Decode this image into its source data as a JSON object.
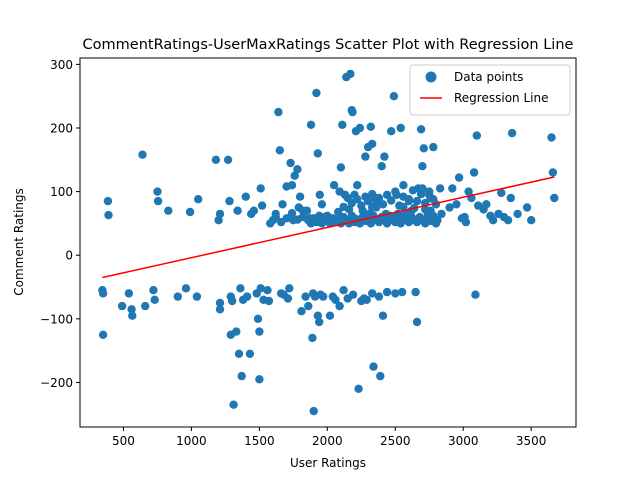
{
  "chart_data": {
    "type": "scatter",
    "title": "CommentRatings-UserMaxRatings Scatter Plot with Regression Line",
    "xlabel": "User Ratings",
    "ylabel": "Comment Ratings",
    "xlim": [
      180,
      3830
    ],
    "ylim": [
      -270,
      310
    ],
    "xticks": [
      500,
      1000,
      1500,
      2000,
      2500,
      3000,
      3500
    ],
    "xtick_labels": [
      "500",
      "1000",
      "1500",
      "2000",
      "2500",
      "3000",
      "3500"
    ],
    "yticks": [
      -200,
      -100,
      0,
      100,
      200,
      300
    ],
    "ytick_labels": [
      "−200",
      "−100",
      "0",
      "100",
      "200",
      "300"
    ],
    "grid": false,
    "legend_position": "top-right",
    "colors": {
      "points": "#1f77b4",
      "regression": "#ff0000",
      "frame": "#000000",
      "legend_border": "#cccccc"
    },
    "series": [
      {
        "name": "Data points",
        "kind": "scatter",
        "points": [
          [
            345,
            -55
          ],
          [
            350,
            -60
          ],
          [
            350,
            -125
          ],
          [
            385,
            85
          ],
          [
            390,
            63
          ],
          [
            490,
            -80
          ],
          [
            540,
            -60
          ],
          [
            560,
            -85
          ],
          [
            565,
            -95
          ],
          [
            640,
            158
          ],
          [
            660,
            -80
          ],
          [
            720,
            -55
          ],
          [
            730,
            -70
          ],
          [
            750,
            100
          ],
          [
            755,
            85
          ],
          [
            830,
            70
          ],
          [
            900,
            -65
          ],
          [
            960,
            -52
          ],
          [
            990,
            68
          ],
          [
            1040,
            -65
          ],
          [
            1050,
            88
          ],
          [
            1180,
            150
          ],
          [
            1200,
            55
          ],
          [
            1210,
            65
          ],
          [
            1210,
            -75
          ],
          [
            1210,
            -85
          ],
          [
            1270,
            150
          ],
          [
            1280,
            85
          ],
          [
            1290,
            -65
          ],
          [
            1290,
            -125
          ],
          [
            1300,
            -72
          ],
          [
            1310,
            -235
          ],
          [
            1330,
            -120
          ],
          [
            1340,
            70
          ],
          [
            1350,
            -155
          ],
          [
            1360,
            -52
          ],
          [
            1370,
            -190
          ],
          [
            1380,
            -70
          ],
          [
            1400,
            92
          ],
          [
            1410,
            -65
          ],
          [
            1430,
            -155
          ],
          [
            1440,
            65
          ],
          [
            1460,
            70
          ],
          [
            1480,
            -60
          ],
          [
            1490,
            -100
          ],
          [
            1500,
            -120
          ],
          [
            1500,
            -195
          ],
          [
            1510,
            -52
          ],
          [
            1510,
            105
          ],
          [
            1520,
            78
          ],
          [
            1530,
            -70
          ],
          [
            1560,
            -55
          ],
          [
            1570,
            -72
          ],
          [
            1580,
            50
          ],
          [
            1600,
            55
          ],
          [
            1620,
            65
          ],
          [
            1640,
            225
          ],
          [
            1650,
            165
          ],
          [
            1660,
            -60
          ],
          [
            1670,
            80
          ],
          [
            1680,
            -62
          ],
          [
            1700,
            108
          ],
          [
            1710,
            -68
          ],
          [
            1720,
            -52
          ],
          [
            1730,
            145
          ],
          [
            1740,
            110
          ],
          [
            1750,
            55
          ],
          [
            1760,
            125
          ],
          [
            1780,
            135
          ],
          [
            1790,
            75
          ],
          [
            1800,
            92
          ],
          [
            1810,
            -88
          ],
          [
            1820,
            60
          ],
          [
            1840,
            -65
          ],
          [
            1850,
            70
          ],
          [
            1860,
            -80
          ],
          [
            1870,
            58
          ],
          [
            1880,
            205
          ],
          [
            1890,
            -130
          ],
          [
            1895,
            -60
          ],
          [
            1900,
            -245
          ],
          [
            1910,
            -65
          ],
          [
            1920,
            255
          ],
          [
            1930,
            160
          ],
          [
            1930,
            -95
          ],
          [
            1940,
            -105
          ],
          [
            1945,
            95
          ],
          [
            1950,
            -62
          ],
          [
            1960,
            80
          ],
          [
            1970,
            -65
          ],
          [
            1980,
            60
          ],
          [
            2000,
            55
          ],
          [
            2020,
            -95
          ],
          [
            2040,
            -65
          ],
          [
            2060,
            -70
          ],
          [
            2080,
            68
          ],
          [
            2090,
            -80
          ],
          [
            2100,
            138
          ],
          [
            2110,
            205
          ],
          [
            2120,
            -55
          ],
          [
            2130,
            95
          ],
          [
            2140,
            280
          ],
          [
            2150,
            -68
          ],
          [
            2160,
            72
          ],
          [
            2170,
            285
          ],
          [
            2180,
            228
          ],
          [
            2185,
            225
          ],
          [
            2190,
            -62
          ],
          [
            2200,
            58
          ],
          [
            2210,
            195
          ],
          [
            2220,
            110
          ],
          [
            2230,
            -210
          ],
          [
            2240,
            200
          ],
          [
            2250,
            -72
          ],
          [
            2260,
            70
          ],
          [
            2270,
            -68
          ],
          [
            2280,
            155
          ],
          [
            2290,
            -70
          ],
          [
            2300,
            170
          ],
          [
            2310,
            65
          ],
          [
            2320,
            202
          ],
          [
            2330,
            -60
          ],
          [
            2330,
            175
          ],
          [
            2340,
            -175
          ],
          [
            2350,
            90
          ],
          [
            2360,
            75
          ],
          [
            2380,
            -65
          ],
          [
            2390,
            -190
          ],
          [
            2400,
            140
          ],
          [
            2410,
            -95
          ],
          [
            2420,
            155
          ],
          [
            2430,
            65
          ],
          [
            2440,
            -58
          ],
          [
            2470,
            195
          ],
          [
            2480,
            60
          ],
          [
            2490,
            250
          ],
          [
            2500,
            -60
          ],
          [
            2510,
            95
          ],
          [
            2520,
            65
          ],
          [
            2540,
            200
          ],
          [
            2550,
            -58
          ],
          [
            2560,
            110
          ],
          [
            2580,
            65
          ],
          [
            2600,
            85
          ],
          [
            2620,
            70
          ],
          [
            2650,
            -58
          ],
          [
            2660,
            -105
          ],
          [
            2670,
            105
          ],
          [
            2690,
            198
          ],
          [
            2700,
            140
          ],
          [
            2710,
            168
          ],
          [
            2720,
            72
          ],
          [
            2740,
            65
          ],
          [
            2750,
            95
          ],
          [
            2760,
            70
          ],
          [
            2780,
            170
          ],
          [
            2800,
            80
          ],
          [
            2810,
            55
          ],
          [
            2830,
            105
          ],
          [
            2840,
            65
          ],
          [
            2900,
            75
          ],
          [
            2920,
            105
          ],
          [
            2950,
            80
          ],
          [
            2970,
            122
          ],
          [
            2990,
            58
          ],
          [
            3010,
            60
          ],
          [
            3020,
            52
          ],
          [
            3040,
            100
          ],
          [
            3060,
            90
          ],
          [
            3080,
            130
          ],
          [
            3090,
            -62
          ],
          [
            3100,
            188
          ],
          [
            3110,
            78
          ],
          [
            3150,
            72
          ],
          [
            3170,
            80
          ],
          [
            3200,
            62
          ],
          [
            3220,
            55
          ],
          [
            3260,
            65
          ],
          [
            3280,
            98
          ],
          [
            3300,
            60
          ],
          [
            3330,
            55
          ],
          [
            3350,
            90
          ],
          [
            3360,
            192
          ],
          [
            3400,
            65
          ],
          [
            3470,
            75
          ],
          [
            3500,
            55
          ],
          [
            3650,
            185
          ],
          [
            3660,
            130
          ],
          [
            3670,
            90
          ]
        ],
        "cluster_points": [
          [
            1860,
            55
          ],
          [
            1880,
            50
          ],
          [
            1900,
            58
          ],
          [
            1920,
            52
          ],
          [
            1940,
            62
          ],
          [
            1960,
            50
          ],
          [
            1980,
            55
          ],
          [
            2000,
            62
          ],
          [
            2020,
            50
          ],
          [
            2040,
            58
          ],
          [
            2060,
            52
          ],
          [
            2080,
            56
          ],
          [
            2100,
            50
          ],
          [
            2120,
            60
          ],
          [
            2140,
            54
          ],
          [
            2160,
            50
          ],
          [
            2180,
            62
          ],
          [
            2200,
            52
          ],
          [
            2220,
            56
          ],
          [
            2240,
            50
          ],
          [
            2260,
            60
          ],
          [
            2280,
            54
          ],
          [
            2300,
            58
          ],
          [
            2320,
            50
          ],
          [
            2340,
            62
          ],
          [
            2360,
            56
          ],
          [
            2380,
            52
          ],
          [
            2400,
            60
          ],
          [
            2420,
            55
          ],
          [
            2440,
            50
          ],
          [
            2460,
            62
          ],
          [
            2480,
            56
          ],
          [
            2500,
            52
          ],
          [
            2520,
            58
          ],
          [
            2540,
            50
          ],
          [
            2560,
            62
          ],
          [
            2580,
            55
          ],
          [
            2600,
            52
          ],
          [
            2620,
            60
          ],
          [
            2640,
            56
          ],
          [
            2660,
            52
          ],
          [
            2680,
            60
          ],
          [
            2700,
            56
          ],
          [
            2720,
            50
          ],
          [
            2740,
            58
          ],
          [
            2760,
            54
          ],
          [
            2780,
            62
          ],
          [
            2800,
            50
          ],
          [
            2150,
            90
          ],
          [
            2180,
            82
          ],
          [
            2200,
            95
          ],
          [
            2220,
            88
          ],
          [
            2250,
            78
          ],
          [
            2280,
            92
          ],
          [
            2300,
            85
          ],
          [
            2330,
            96
          ],
          [
            2360,
            82
          ],
          [
            2380,
            90
          ],
          [
            2410,
            80
          ],
          [
            2440,
            95
          ],
          [
            2470,
            86
          ],
          [
            2500,
            100
          ],
          [
            2530,
            78
          ],
          [
            2560,
            92
          ],
          [
            2600,
            88
          ],
          [
            2630,
            102
          ],
          [
            2660,
            85
          ],
          [
            2690,
            96
          ],
          [
            2720,
            82
          ],
          [
            2750,
            100
          ],
          [
            2780,
            88
          ],
          [
            1620,
            60
          ],
          [
            1660,
            52
          ],
          [
            1700,
            58
          ],
          [
            1740,
            66
          ],
          [
            1780,
            56
          ],
          [
            1820,
            70
          ],
          [
            2050,
            110
          ],
          [
            2090,
            100
          ],
          [
            2120,
            76
          ],
          [
            2330,
            75
          ],
          [
            2560,
            76
          ],
          [
            2640,
            74
          ],
          [
            2700,
            105
          ],
          [
            2760,
            90
          ]
        ]
      },
      {
        "name": "Regression Line",
        "kind": "line",
        "start": [
          345,
          -35
        ],
        "end": [
          3670,
          123
        ]
      }
    ]
  }
}
